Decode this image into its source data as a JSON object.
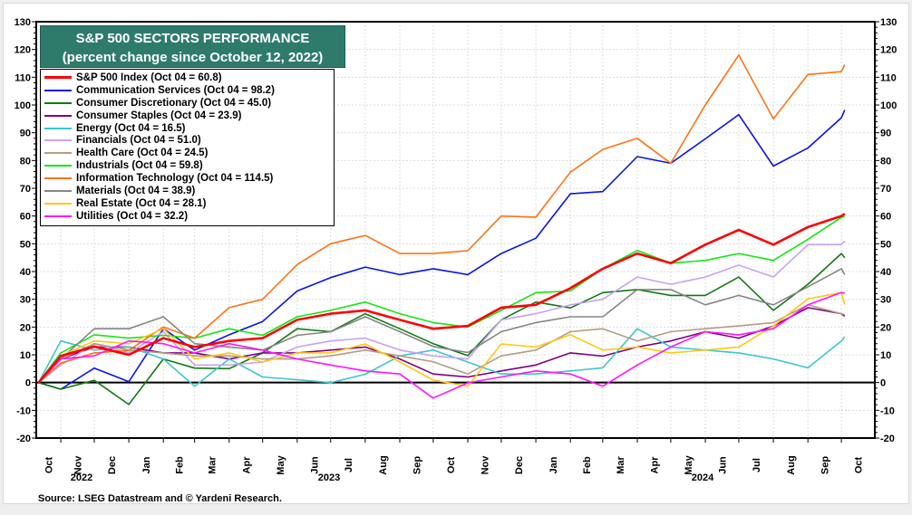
{
  "chart_data": {
    "type": "line",
    "title": "S&P 500 SECTORS PERFORMANCE",
    "subtitle": "(percent change since October 12, 2022)",
    "source": "Source: LSEG Datastream and © Yardeni Research.",
    "xlabel": "",
    "ylabel": "",
    "ylim": [
      -20,
      130
    ],
    "yticks": [
      -20,
      -10,
      0,
      10,
      20,
      30,
      40,
      50,
      60,
      70,
      80,
      90,
      100,
      110,
      120,
      130
    ],
    "xlim": [
      "2022-10-10",
      "2024-10-31"
    ],
    "month_labels": [
      "Oct",
      "Nov",
      "Dec",
      "Jan",
      "Feb",
      "Mar",
      "Apr",
      "May",
      "Jun",
      "Jul",
      "Aug",
      "Sep",
      "Oct",
      "Nov",
      "Dec",
      "Jan",
      "Feb",
      "Mar",
      "Apr",
      "May",
      "Jun",
      "Jul",
      "Aug",
      "Sep",
      "Oct"
    ],
    "year_labels": [
      "2022",
      "2023",
      "2024"
    ],
    "grid": true,
    "legend_position": "top-left",
    "x": [
      "2022-10-12",
      "2022-11-01",
      "2022-12-01",
      "2023-01-01",
      "2023-02-01",
      "2023-03-01",
      "2023-04-01",
      "2023-05-01",
      "2023-06-01",
      "2023-07-01",
      "2023-08-01",
      "2023-09-01",
      "2023-10-01",
      "2023-11-01",
      "2023-12-01",
      "2024-01-01",
      "2024-02-01",
      "2024-03-01",
      "2024-04-01",
      "2024-05-01",
      "2024-06-01",
      "2024-07-01",
      "2024-08-01",
      "2024-09-01",
      "2024-10-01",
      "2024-10-04"
    ],
    "series": [
      {
        "name": "S&P 500 Index (Oct 04 = 60.8)",
        "color": "#ff0000",
        "width": 2.6,
        "values": [
          0,
          9.6,
          13,
          10,
          16,
          12.8,
          15,
          16,
          22.6,
          24.8,
          26,
          22.6,
          19.4,
          20.4,
          27,
          28,
          34,
          41,
          46.5,
          43,
          49.7,
          55,
          49.7,
          56,
          60,
          60.8
        ]
      },
      {
        "name": "Communication Services (Oct 04 = 98.2)",
        "color": "#0a14e6",
        "width": 1.6,
        "values": [
          0,
          -2.4,
          5.2,
          0.3,
          19.4,
          11.7,
          17.2,
          22,
          33,
          37.8,
          41.6,
          38.9,
          41,
          38.9,
          46.5,
          52,
          68,
          68.8,
          81.4,
          79,
          87.8,
          96.5,
          78,
          84.5,
          95.4,
          98.2
        ]
      },
      {
        "name": "Consumer Discretionary (Oct 04 = 45.0)",
        "color": "#137a13",
        "width": 1.6,
        "values": [
          0,
          -2.4,
          0.8,
          -7.9,
          8.5,
          5.2,
          5,
          10.7,
          19.4,
          18.3,
          24.8,
          19.4,
          14,
          9.7,
          22.6,
          29,
          26.9,
          32.4,
          33.5,
          31.4,
          31.4,
          38,
          26,
          35.4,
          46.5,
          45
        ]
      },
      {
        "name": "Consumer Staples (Oct 04 = 23.9)",
        "color": "#800080",
        "width": 1.6,
        "values": [
          0,
          8.5,
          12.8,
          12.8,
          10.7,
          10.7,
          8.5,
          10.7,
          10.7,
          11.7,
          12.8,
          8.5,
          3.1,
          2,
          4.2,
          6.3,
          10.7,
          9.5,
          12.8,
          15,
          18.3,
          16,
          20.4,
          27,
          24.8,
          23.9
        ]
      },
      {
        "name": "Energy (Oct 04 = 16.5)",
        "color": "#3cc6cf",
        "width": 1.6,
        "values": [
          0,
          15,
          11.7,
          12.8,
          8.5,
          -1.3,
          8.5,
          2,
          1,
          0,
          3,
          9.6,
          11.7,
          7.4,
          3.1,
          3.1,
          4.2,
          5.3,
          19.4,
          12.8,
          11.7,
          10.7,
          8.5,
          5.3,
          15,
          16.5
        ]
      },
      {
        "name": "Financials (Oct 04 = 51.0)",
        "color": "#c9a2f2",
        "width": 1.6,
        "values": [
          0,
          6.3,
          14,
          10.7,
          18.3,
          6.3,
          6.3,
          7.4,
          12.8,
          15,
          16,
          11.7,
          9.6,
          8.5,
          22.6,
          24.8,
          28,
          30,
          38,
          35.4,
          38,
          42.3,
          38,
          49.7,
          49.7,
          51
        ]
      },
      {
        "name": "Health Care (Oct 04 = 24.5)",
        "color": "#b29e84",
        "width": 1.6,
        "values": [
          0,
          8.5,
          14,
          11.7,
          10.7,
          9.6,
          9.6,
          8.5,
          8.5,
          9.6,
          11.7,
          9.6,
          7.5,
          3.1,
          9.6,
          11.7,
          18.3,
          19.4,
          15,
          18.3,
          19.4,
          20.4,
          21.6,
          28,
          24.8,
          24.5
        ]
      },
      {
        "name": "Industrials (Oct 04 = 59.8)",
        "color": "#11e811",
        "width": 1.6,
        "values": [
          0,
          10.7,
          17.2,
          16,
          17,
          16,
          19.4,
          17,
          23.7,
          26,
          29,
          24.8,
          21.6,
          20,
          26,
          32.4,
          33,
          41,
          47.6,
          43,
          44,
          46.5,
          44,
          51.6,
          59.5,
          59.8
        ]
      },
      {
        "name": "Information Technology (Oct 04 = 114.5)",
        "color": "#ff7214",
        "width": 1.6,
        "values": [
          0,
          7,
          10.7,
          11.6,
          20,
          16,
          27,
          30,
          42.5,
          50,
          53,
          46.5,
          46.5,
          47.5,
          60,
          59.6,
          75.8,
          84,
          88,
          79,
          100,
          118,
          95,
          111,
          112,
          114.5
        ]
      },
      {
        "name": "Materials (Oct 04 = 38.9)",
        "color": "#858585",
        "width": 1.6,
        "values": [
          0,
          8.5,
          19.4,
          19.4,
          23.7,
          14,
          12.8,
          11.7,
          17,
          18.3,
          23.7,
          18.3,
          13,
          10.8,
          18.3,
          21.6,
          23.7,
          23.7,
          33.5,
          33.5,
          28,
          31.4,
          28,
          34.5,
          41,
          38.9
        ]
      },
      {
        "name": "Real Estate (Oct 04 = 28.1)",
        "color": "#ffc814",
        "width": 1.6,
        "values": [
          0,
          9.6,
          15,
          14,
          19.4,
          8.5,
          10.7,
          7.4,
          10.7,
          10.7,
          13.9,
          7.4,
          0.9,
          -1.3,
          13.9,
          12.8,
          17.2,
          11.7,
          12.8,
          10.7,
          11.7,
          12.8,
          20.4,
          30.2,
          32.4,
          28.1
        ]
      },
      {
        "name": "Utilities (Oct 04 = 32.2)",
        "color": "#ff14ff",
        "width": 1.6,
        "values": [
          0,
          8.5,
          9.6,
          15,
          14,
          10.7,
          14,
          11.7,
          8.5,
          6.3,
          4.2,
          3.1,
          -5.6,
          -0.1,
          2,
          4.2,
          3.1,
          -1.3,
          6.3,
          12.8,
          18.3,
          17.2,
          19.4,
          28,
          32.4,
          32.2
        ]
      }
    ]
  }
}
